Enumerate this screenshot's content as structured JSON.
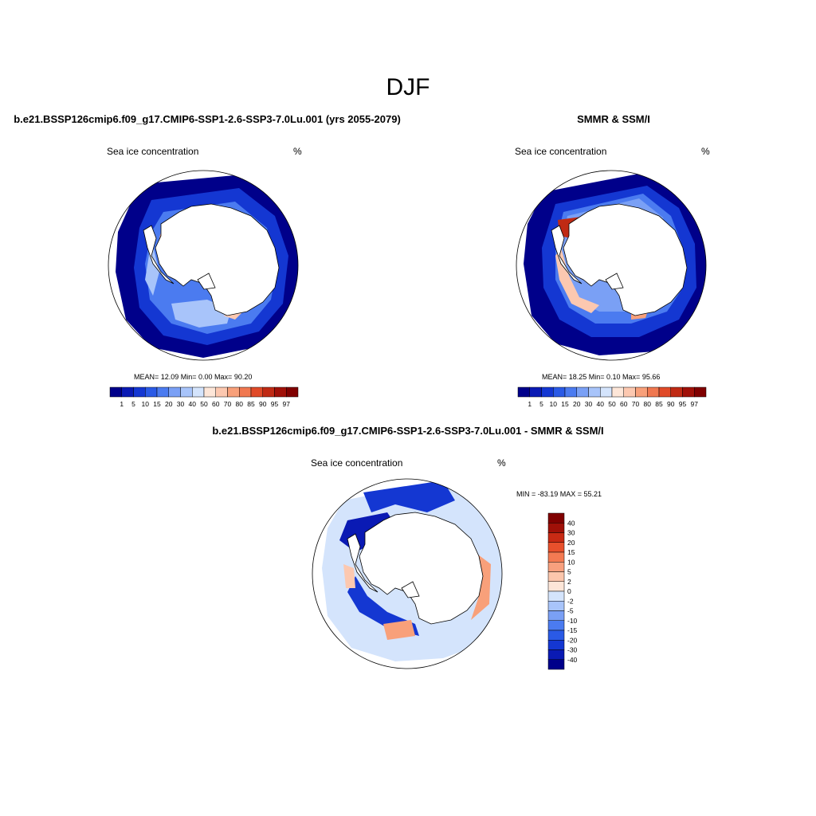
{
  "title": "DJF",
  "panels": [
    {
      "title": "b.e21.BSSP126cmip6.f09_g17.CMIP6-SSP1-2.6-SSP3-7.0Lu.001 (yrs 2055-2079)",
      "left_label": "Sea ice concentration",
      "right_label": "%",
      "stats": "MEAN=  12.09  Min=   0.00  Max=  90.20"
    },
    {
      "title": "SMMR & SSM/I",
      "left_label": "Sea ice concentration",
      "right_label": "%",
      "stats": "MEAN=  18.25  Min=   0.10  Max=  95.66"
    },
    {
      "title": "b.e21.BSSP126cmip6.f09_g17.CMIP6-SSP1-2.6-SSP3-7.0Lu.001 - SMMR & SSM/I",
      "left_label": "Sea ice concentration",
      "right_label": "%",
      "stats": "MIN = -83.19 MAX =  55.21"
    }
  ],
  "colorbar_conc": {
    "labels": [
      "1",
      "5",
      "10",
      "15",
      "20",
      "30",
      "40",
      "50",
      "60",
      "70",
      "80",
      "85",
      "90",
      "95",
      "97"
    ],
    "colors": [
      "#00008a",
      "#0a1ab4",
      "#1437d2",
      "#2a5ae6",
      "#4b7bf0",
      "#7aa0f5",
      "#a8c4fa",
      "#d4e4fc",
      "#fde6d8",
      "#fcc8b0",
      "#f8a07a",
      "#f07850",
      "#e04a28",
      "#c02a14",
      "#a01008",
      "#800000"
    ]
  },
  "colorbar_diff": {
    "labels": [
      "40",
      "30",
      "20",
      "15",
      "10",
      "5",
      "2",
      "0",
      "-2",
      "-5",
      "-10",
      "-15",
      "-20",
      "-30",
      "-40"
    ],
    "colors": [
      "#800000",
      "#a01008",
      "#c82a14",
      "#e8502c",
      "#f47a52",
      "#f8a07e",
      "#fcc6ac",
      "#fde6d8",
      "#d4e4fc",
      "#a8c4fa",
      "#7aa0f5",
      "#4b7bf0",
      "#2a5ae6",
      "#1437d2",
      "#0a1ab4",
      "#00008a"
    ]
  }
}
